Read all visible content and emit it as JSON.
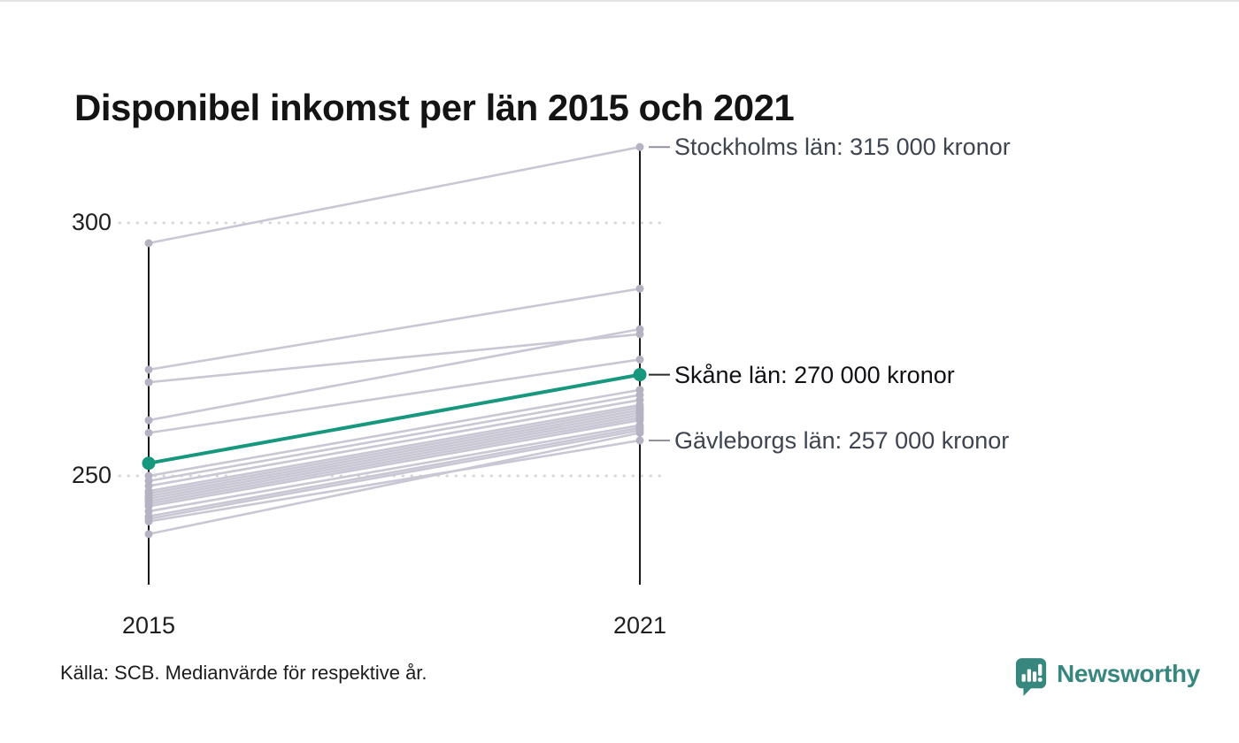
{
  "title": "Disponibel inkomst per län 2015 och 2021",
  "source_note": "Källa: SCB. Medianvärde för respektive år.",
  "brand": {
    "name": "Newsworthy"
  },
  "colors": {
    "highlight": "#17977e",
    "line_gray": "#cac7d4",
    "dot_gray": "#b5b2c2",
    "axis": "#191919",
    "grid": "#d7d7d7",
    "dash_gray": "#93909e",
    "dash_dark": "#2b2b2b",
    "annotation_text": "#3e4450",
    "annotation_emphasis_text": "#101114",
    "brand_teal": "#37877f"
  },
  "chart_data": {
    "type": "line",
    "variant": "slope",
    "title": "Disponibel inkomst per län 2015 och 2021",
    "unit": "tusen kronor (median)",
    "x": [
      "2015",
      "2021"
    ],
    "yticks": [
      300,
      250
    ],
    "ylim": [
      232,
      322
    ],
    "grid": "dotted-horizontal",
    "legend": "none",
    "series": [
      {
        "name": "Stockholms län",
        "values": [
          296,
          315
        ],
        "highlight": false
      },
      {
        "name": null,
        "values": [
          271,
          287
        ],
        "highlight": false
      },
      {
        "name": null,
        "values": [
          268.5,
          278
        ],
        "highlight": false
      },
      {
        "name": null,
        "values": [
          261,
          279
        ],
        "highlight": false
      },
      {
        "name": null,
        "values": [
          258.5,
          273
        ],
        "highlight": false
      },
      {
        "name": "Skåne län",
        "values": [
          252.5,
          270
        ],
        "highlight": true
      },
      {
        "name": null,
        "values": [
          250,
          267
        ],
        "highlight": false
      },
      {
        "name": null,
        "values": [
          249,
          266
        ],
        "highlight": false
      },
      {
        "name": null,
        "values": [
          248,
          265
        ],
        "highlight": false
      },
      {
        "name": null,
        "values": [
          247,
          264
        ],
        "highlight": false
      },
      {
        "name": null,
        "values": [
          246.5,
          263.5
        ],
        "highlight": false
      },
      {
        "name": null,
        "values": [
          246,
          263
        ],
        "highlight": false
      },
      {
        "name": null,
        "values": [
          245.5,
          262.5
        ],
        "highlight": false
      },
      {
        "name": null,
        "values": [
          245,
          262
        ],
        "highlight": false
      },
      {
        "name": null,
        "values": [
          244.5,
          261.5
        ],
        "highlight": false
      },
      {
        "name": null,
        "values": [
          244,
          261
        ],
        "highlight": false
      },
      {
        "name": null,
        "values": [
          243,
          260
        ],
        "highlight": false
      },
      {
        "name": null,
        "values": [
          242,
          259.5
        ],
        "highlight": false
      },
      {
        "name": null,
        "values": [
          241.5,
          259
        ],
        "highlight": false
      },
      {
        "name": "Gävleborgs län",
        "values": [
          241,
          257
        ],
        "highlight": false
      },
      {
        "name": null,
        "values": [
          238.5,
          258.5
        ],
        "highlight": false
      }
    ],
    "annotations": [
      {
        "text": "Stockholms län: 315 000 kronor",
        "value": 315,
        "emphasis": false
      },
      {
        "text": "Skåne län: 270 000 kronor",
        "value": 270,
        "emphasis": true
      },
      {
        "text": "Gävleborgs län: 257 000 kronor",
        "value": 257,
        "emphasis": false
      }
    ]
  }
}
